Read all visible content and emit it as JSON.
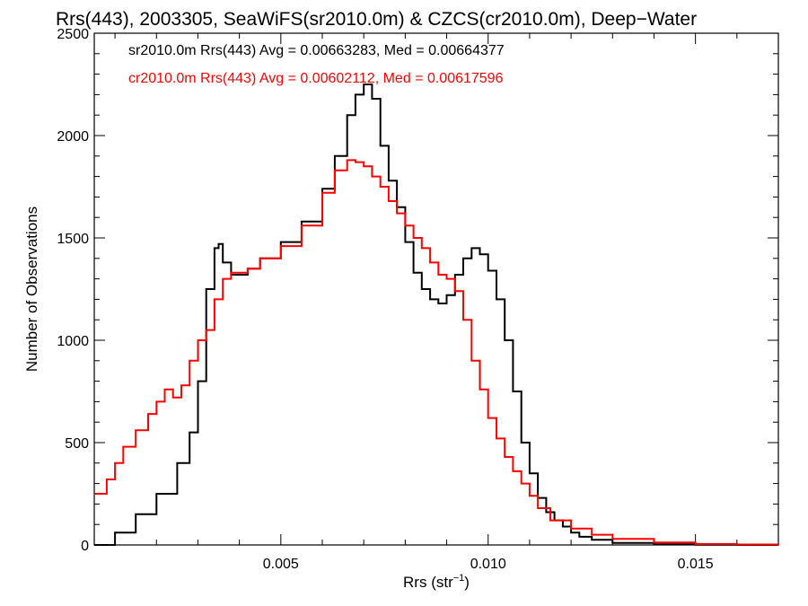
{
  "chart_data": {
    "type": "line",
    "title": "Rrs(443), 2003305, SeaWiFS(sr2010.0m) & CZCS(cr2010.0m), Deep−Water",
    "xlabel": "Rrs (str",
    "xlabel_sup": "−1",
    "xlabel_close": ")",
    "ylabel": "Number of Observations",
    "xlim": [
      0.0005,
      0.017
    ],
    "ylim": [
      0,
      2500
    ],
    "xticks": [
      0.005,
      0.01,
      0.015
    ],
    "xtick_labels": [
      "0.005",
      "0.010",
      "0.015"
    ],
    "yticks": [
      0,
      500,
      1000,
      1500,
      2000,
      2500
    ],
    "ytick_labels": [
      "0",
      "500",
      "1000",
      "1500",
      "2000",
      "2500"
    ],
    "grid": false,
    "legend_placement": "top-left",
    "step_plot": true,
    "series": [
      {
        "name": "sr2010.0m Rrs(443) Avg = 0.00663283, Med = 0.00664377",
        "color": "#000000",
        "x": [
          0.0005,
          0.001,
          0.0015,
          0.002,
          0.0025,
          0.0028,
          0.003,
          0.0032,
          0.0034,
          0.0035,
          0.0036,
          0.0038,
          0.004,
          0.0042,
          0.0045,
          0.005,
          0.0055,
          0.006,
          0.0063,
          0.0066,
          0.0068,
          0.007,
          0.0072,
          0.0074,
          0.0076,
          0.0078,
          0.008,
          0.0082,
          0.0084,
          0.0086,
          0.0088,
          0.009,
          0.0092,
          0.0094,
          0.0096,
          0.0098,
          0.01,
          0.0102,
          0.0104,
          0.0106,
          0.0108,
          0.011,
          0.0112,
          0.0114,
          0.0116,
          0.0118,
          0.012,
          0.0122,
          0.0125,
          0.013,
          0.014,
          0.015,
          0.016,
          0.017
        ],
        "values": [
          0,
          60,
          150,
          250,
          400,
          550,
          800,
          1250,
          1450,
          1470,
          1380,
          1320,
          1320,
          1350,
          1400,
          1480,
          1580,
          1740,
          1900,
          2100,
          2200,
          2250,
          2180,
          1950,
          1780,
          1650,
          1480,
          1330,
          1250,
          1200,
          1180,
          1220,
          1320,
          1400,
          1450,
          1420,
          1340,
          1200,
          1000,
          750,
          500,
          350,
          230,
          160,
          120,
          90,
          60,
          40,
          25,
          10,
          3,
          1,
          0,
          0
        ]
      },
      {
        "name": "cr2010.0m Rrs(443) Avg = 0.00602112, Med = 0.00617596",
        "color": "#ff0000",
        "x": [
          0.0005,
          0.0008,
          0.001,
          0.0012,
          0.0015,
          0.0018,
          0.002,
          0.0022,
          0.0024,
          0.0026,
          0.0028,
          0.003,
          0.0032,
          0.0034,
          0.0036,
          0.0038,
          0.004,
          0.0042,
          0.0045,
          0.005,
          0.0055,
          0.006,
          0.0063,
          0.0066,
          0.0068,
          0.007,
          0.0072,
          0.0074,
          0.0076,
          0.0078,
          0.008,
          0.0082,
          0.0084,
          0.0086,
          0.0088,
          0.009,
          0.0092,
          0.0094,
          0.0096,
          0.0098,
          0.01,
          0.0102,
          0.0104,
          0.0106,
          0.0108,
          0.011,
          0.0112,
          0.0115,
          0.012,
          0.0125,
          0.013,
          0.014,
          0.015,
          0.016,
          0.017
        ],
        "values": [
          250,
          320,
          400,
          480,
          560,
          640,
          700,
          760,
          720,
          780,
          900,
          1000,
          1050,
          1200,
          1300,
          1330,
          1330,
          1350,
          1400,
          1460,
          1560,
          1720,
          1830,
          1880,
          1870,
          1850,
          1800,
          1750,
          1680,
          1620,
          1560,
          1500,
          1450,
          1380,
          1320,
          1300,
          1240,
          1100,
          900,
          760,
          620,
          520,
          430,
          360,
          300,
          240,
          180,
          120,
          80,
          50,
          30,
          12,
          5,
          2,
          0
        ]
      }
    ]
  }
}
